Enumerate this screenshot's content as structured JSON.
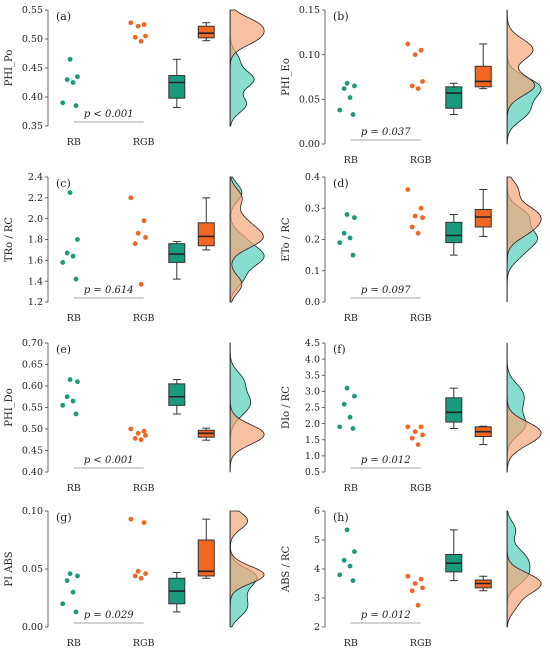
{
  "colors": {
    "rb": "#1a9a7c",
    "rgb": "#f26522",
    "rb_density": "#5fd1bd",
    "rgb_density": "#f4a57a",
    "overlap": "#9a7a4c"
  },
  "chart_data": [
    {
      "panel": "(a)",
      "type": "raincloud",
      "ylabel": "PHI_Po",
      "categories": [
        "RB",
        "RGB"
      ],
      "ylim": [
        0.35,
        0.55
      ],
      "yticks": [
        "0.35",
        "0.40",
        "0.45",
        "0.50",
        "0.55"
      ],
      "ptext": "p < 0.001",
      "rb_points": [
        0.385,
        0.39,
        0.425,
        0.43,
        0.435,
        0.465
      ],
      "rgb_points": [
        0.496,
        0.503,
        0.505,
        0.522,
        0.525,
        0.528
      ],
      "rb_box": {
        "min": 0.382,
        "q1": 0.398,
        "median": 0.425,
        "q3": 0.437,
        "max": 0.465
      },
      "rgb_box": {
        "min": 0.497,
        "q1": 0.502,
        "median": 0.51,
        "q3": 0.522,
        "max": 0.528
      }
    },
    {
      "panel": "(b)",
      "type": "raincloud",
      "ylabel": "PHI_Eo",
      "categories": [
        "RB",
        "RGB"
      ],
      "ylim": [
        0.0,
        0.15
      ],
      "yticks": [
        "0.00",
        "0.05",
        "0.10",
        "0.15"
      ],
      "ptext": "p = 0.037",
      "rb_points": [
        0.033,
        0.038,
        0.052,
        0.062,
        0.065,
        0.068
      ],
      "rgb_points": [
        0.062,
        0.065,
        0.07,
        0.1,
        0.105,
        0.112
      ],
      "rb_box": {
        "min": 0.033,
        "q1": 0.04,
        "median": 0.057,
        "q3": 0.064,
        "max": 0.068
      },
      "rgb_box": {
        "min": 0.062,
        "q1": 0.064,
        "median": 0.07,
        "q3": 0.087,
        "max": 0.112
      }
    },
    {
      "panel": "(c)",
      "type": "raincloud",
      "ylabel": "TRo / RC",
      "categories": [
        "RB",
        "RGB"
      ],
      "ylim": [
        1.2,
        2.4
      ],
      "yticks": [
        "1.2",
        "1.4",
        "1.6",
        "1.8",
        "2.0",
        "2.2",
        "2.4"
      ],
      "ptext": "p = 0.614",
      "rb_points": [
        1.42,
        1.58,
        1.64,
        1.67,
        1.8,
        2.25
      ],
      "rgb_points": [
        1.37,
        1.76,
        1.82,
        1.86,
        1.98,
        2.2
      ],
      "rb_box": {
        "min": 1.42,
        "q1": 1.58,
        "median": 1.66,
        "q3": 1.76,
        "max": 1.78
      },
      "rgb_box": {
        "min": 1.7,
        "q1": 1.74,
        "median": 1.83,
        "q3": 1.96,
        "max": 2.2
      }
    },
    {
      "panel": "(d)",
      "type": "raincloud",
      "ylabel": "ETo / RC",
      "categories": [
        "RB",
        "RGB"
      ],
      "ylim": [
        0.0,
        0.4
      ],
      "yticks": [
        "0.0",
        "0.1",
        "0.2",
        "0.3",
        "0.4"
      ],
      "ptext": "p = 0.097",
      "rb_points": [
        0.15,
        0.19,
        0.205,
        0.22,
        0.27,
        0.28
      ],
      "rgb_points": [
        0.22,
        0.24,
        0.27,
        0.275,
        0.3,
        0.36
      ],
      "rb_box": {
        "min": 0.15,
        "q1": 0.19,
        "median": 0.213,
        "q3": 0.255,
        "max": 0.28
      },
      "rgb_box": {
        "min": 0.21,
        "q1": 0.24,
        "median": 0.272,
        "q3": 0.296,
        "max": 0.36
      }
    },
    {
      "panel": "(e)",
      "type": "raincloud",
      "ylabel": "PHI_Do",
      "categories": [
        "RB",
        "RGB"
      ],
      "ylim": [
        0.4,
        0.7
      ],
      "yticks": [
        "0.40",
        "0.45",
        "0.50",
        "0.55",
        "0.60",
        "0.65",
        "0.70"
      ],
      "ptext": "p < 0.001",
      "rb_points": [
        0.535,
        0.555,
        0.565,
        0.575,
        0.61,
        0.615
      ],
      "rgb_points": [
        0.475,
        0.478,
        0.485,
        0.49,
        0.495,
        0.5
      ],
      "rb_box": {
        "min": 0.535,
        "q1": 0.555,
        "median": 0.575,
        "q3": 0.605,
        "max": 0.615
      },
      "rgb_box": {
        "min": 0.474,
        "q1": 0.481,
        "median": 0.49,
        "q3": 0.497,
        "max": 0.502
      }
    },
    {
      "panel": "(f)",
      "type": "raincloud",
      "ylabel": "DIo / RC",
      "categories": [
        "RB",
        "RGB"
      ],
      "ylim": [
        0.5,
        4.5
      ],
      "yticks": [
        "0.5",
        "1.0",
        "1.5",
        "2.0",
        "2.5",
        "3.0",
        "3.5",
        "4.0",
        "4.5"
      ],
      "ptext": "p = 0.012",
      "rb_points": [
        1.85,
        1.9,
        2.2,
        2.6,
        2.85,
        3.1
      ],
      "rgb_points": [
        1.35,
        1.55,
        1.65,
        1.75,
        1.9,
        1.9
      ],
      "rb_box": {
        "min": 1.85,
        "q1": 2.05,
        "median": 2.35,
        "q3": 2.8,
        "max": 3.1
      },
      "rgb_box": {
        "min": 1.35,
        "q1": 1.6,
        "median": 1.75,
        "q3": 1.9,
        "max": 1.92
      }
    },
    {
      "panel": "(g)",
      "type": "raincloud",
      "ylabel": "PI ABS",
      "categories": [
        "RB",
        "RGB"
      ],
      "ylim": [
        0.0,
        0.1
      ],
      "yticks": [
        "0.00",
        "0.05",
        "0.10"
      ],
      "ptext": "p = 0.029",
      "rb_points": [
        0.013,
        0.02,
        0.03,
        0.04,
        0.044,
        0.046
      ],
      "rgb_points": [
        0.042,
        0.044,
        0.046,
        0.048,
        0.09,
        0.093
      ],
      "rb_box": {
        "min": 0.013,
        "q1": 0.02,
        "median": 0.031,
        "q3": 0.042,
        "max": 0.047
      },
      "rgb_box": {
        "min": 0.042,
        "q1": 0.044,
        "median": 0.048,
        "q3": 0.075,
        "max": 0.093
      }
    },
    {
      "panel": "(h)",
      "type": "raincloud",
      "ylabel": "ABS / RC",
      "categories": [
        "RB",
        "RGB"
      ],
      "ylim": [
        2.0,
        6.0
      ],
      "yticks": [
        "2",
        "3",
        "4",
        "5",
        "6"
      ],
      "ptext": "p = 0.012",
      "rb_points": [
        3.6,
        3.8,
        4.1,
        4.3,
        4.6,
        5.35
      ],
      "rgb_points": [
        2.75,
        3.25,
        3.35,
        3.5,
        3.65,
        3.75
      ],
      "rb_box": {
        "min": 3.6,
        "q1": 3.9,
        "median": 4.2,
        "q3": 4.5,
        "max": 5.35
      },
      "rgb_box": {
        "min": 3.25,
        "q1": 3.35,
        "median": 3.5,
        "q3": 3.62,
        "max": 3.75
      }
    }
  ]
}
